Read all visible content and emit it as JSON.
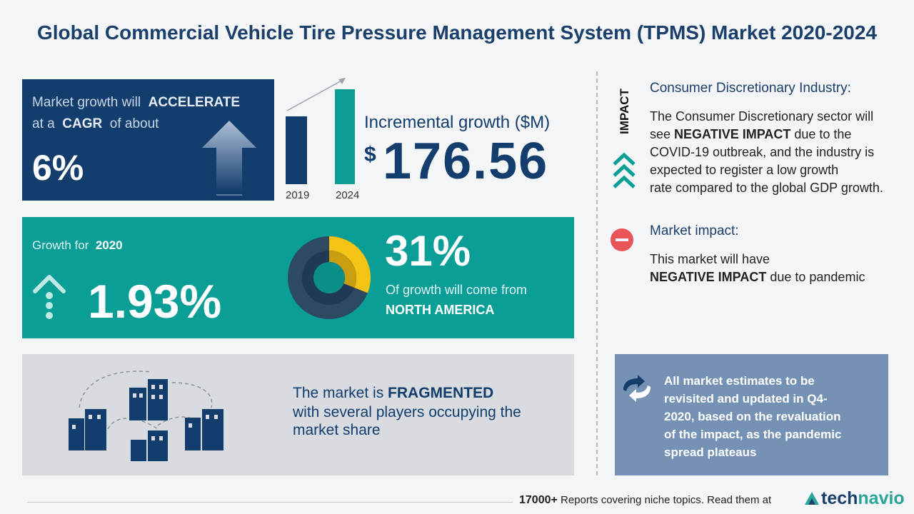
{
  "title": "Global Commercial Vehicle Tire Pressure Management System (TPMS) Market 2020-2024",
  "cagr": {
    "line1_prefix": "Market growth will",
    "line1_bold": "ACCELERATE",
    "line2_prefix": "at a",
    "line2_bold": "CAGR",
    "line2_suffix": "of about",
    "value": "6%"
  },
  "bars": {
    "year_start": "2019",
    "year_end": "2024"
  },
  "incremental": {
    "label": "Incremental growth ($M)",
    "currency": "$",
    "value": "176.56"
  },
  "growth2020": {
    "label_prefix": "Growth for",
    "label_year": "2020",
    "value": "1.93%",
    "region_pct": "31%",
    "region_label": "Of growth will come from",
    "region_name": "NORTH AMERICA",
    "region_share": 0.31
  },
  "fragmented": {
    "prefix": "The market is",
    "bold": "FRAGMENTED",
    "line2": "with several players occupying the",
    "line3": "market share"
  },
  "impact": {
    "vertical_label": "IMPACT",
    "industry_title": "Consumer Discretionary Industry:",
    "industry_lines": [
      {
        "pre": "The Consumer Discretionary sector will",
        "bold": "",
        "post": ""
      },
      {
        "pre": "see ",
        "bold": "NEGATIVE IMPACT",
        "post": " due to the"
      },
      {
        "pre": "COVID-19 outbreak, and the industry is",
        "bold": "",
        "post": ""
      },
      {
        "pre": "expected to register a low growth",
        "bold": "",
        "post": ""
      },
      {
        "pre": "rate compared to the global GDP growth.",
        "bold": "",
        "post": ""
      }
    ],
    "market_title": "Market impact:",
    "market_line1": "This market will have",
    "market_line2_bold": "NEGATIVE IMPACT",
    "market_line2_post": " due to pandemic"
  },
  "note": {
    "lines": [
      "All market estimates to be",
      "revisited and updated in Q4-",
      "2020, based on the revaluation",
      "of the impact, as the pandemic",
      "spread plateaus"
    ]
  },
  "footer": {
    "count": "17000+",
    "text": "Reports covering niche topics. Read them at",
    "brand_a": "tech",
    "brand_b": "navio"
  },
  "colors": {
    "navy": "#133d6d",
    "teal": "#0b9e96",
    "yellow": "#f4c414",
    "red": "#e8545a",
    "slate": "#7592b5"
  }
}
